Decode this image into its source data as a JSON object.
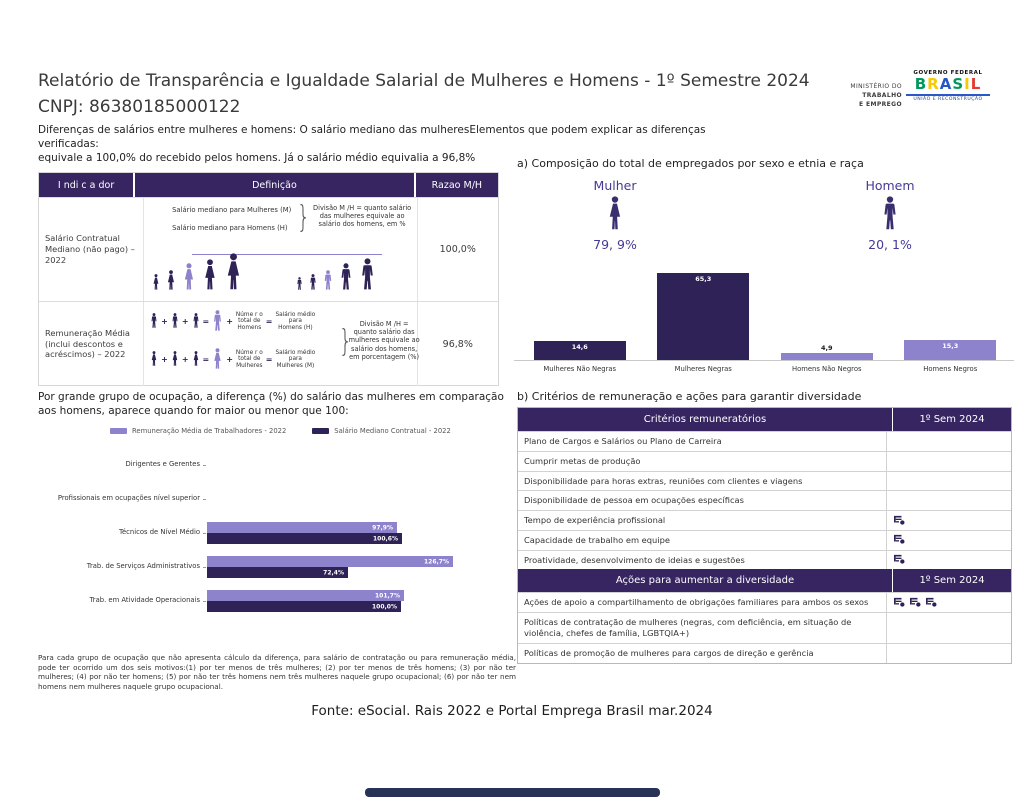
{
  "colors": {
    "dark_purple": "#2e2256",
    "header_purple": "#362560",
    "light_purple": "#8d82cc",
    "indigo_label": "#453a96",
    "axis_gray": "#c9c9c9"
  },
  "header": {
    "title": "Relatório de Transparência e Igualdade Salarial de Mulheres e Homens - 1º Semestre 2024",
    "cnpj": "CNPJ: 86380185000122",
    "subtitle_line1": "Diferenças de salários entre mulheres e homens: O salário mediano das mulheresElementos que podem explicar as diferenças verificadas:",
    "subtitle_line2": "equivale a 100,0% do recebido pelos homens. Já o salário médio equivalia a 96,8%",
    "ministry_line1": "MINISTÉRIO DO",
    "ministry_line2": "TRABALHO",
    "ministry_line3": "E EMPREGO",
    "gov_top": "GOVERNO FEDERAL",
    "gov_brand": "BRASIL",
    "gov_brand_letters": [
      {
        "ch": "B",
        "color": "#00995d"
      },
      {
        "ch": "R",
        "color": "#f7c900"
      },
      {
        "ch": "A",
        "color": "#2456c4"
      },
      {
        "ch": "S",
        "color": "#e23p"
      },
      {
        "ch": "I",
        "color": "#f7c900"
      },
      {
        "ch": "L",
        "color": "#2456c4"
      }
    ],
    "gov_bottom": "UNIÃO E RECONSTRUÇÃO"
  },
  "indicator_table": {
    "headers": [
      "I ndi c a dor",
      "Definição",
      "Razao M/H"
    ],
    "row1": {
      "indicator": "Salário Contratual Mediano (não pago) – 2022",
      "def_line1": "Salário mediano para Mulheres (M)",
      "def_line2": "Salário mediano para Homens (H)",
      "note": "Divisão M /H = quanto salário das mulheres equivale ao salário dos homens, em %",
      "ratio": "100,0%",
      "women_figures": [
        {
          "h": 16,
          "tone": "dark"
        },
        {
          "h": 20,
          "tone": "dark"
        },
        {
          "h": 27,
          "tone": "light"
        },
        {
          "h": 31,
          "tone": "dark"
        },
        {
          "h": 37,
          "tone": "dark"
        }
      ],
      "men_figures": [
        {
          "h": 13,
          "tone": "dark"
        },
        {
          "h": 16,
          "tone": "dark"
        },
        {
          "h": 20,
          "tone": "light"
        },
        {
          "h": 27,
          "tone": "dark"
        },
        {
          "h": 32,
          "tone": "dark"
        }
      ]
    },
    "row2": {
      "indicator": "Remuneração Média (inclui descontos e acréscimos) – 2022",
      "eq1_label1": "Núme r o\ntotal de\nHomens",
      "eq1_label2": "Salário médio\npara\nHomens (H)",
      "eq2_label1": "Núme r o\ntotal de\nMulheres",
      "eq2_label2": "Salário médio\npara\nMulheres (M)",
      "note": "Divisão M /H = quanto salário das mulheres equivale ao salário dos homens, em porcentagem (%)",
      "ratio": "96,8%"
    }
  },
  "section_a": {
    "title": "a) Composição do total de empregados por sexo e etnia e raça",
    "female_label": "Mulher",
    "female_pct": "79, 9%",
    "male_label": "Homem",
    "male_pct": "20, 1%"
  },
  "chart_data": [
    {
      "type": "bar",
      "title": "a) Composição do total de empregados por sexo e etnia e raça",
      "categories": [
        "Mulheres Não Negras",
        "Mulheres Negras",
        "Homens Não Negros",
        "Homens Negros"
      ],
      "values": [
        14.6,
        65.3,
        4.9,
        15.3
      ],
      "value_labels": [
        "14,6",
        "65,3",
        "4,9",
        "15,3"
      ],
      "bar_tones": [
        "dark",
        "dark",
        "light",
        "light"
      ],
      "ylim": [
        0,
        70
      ],
      "grid": false,
      "annotations": {
        "Mulher": "79, 9%",
        "Homem": "20, 1%"
      }
    },
    {
      "type": "bar-horizontal",
      "categories": [
        "Dirigentes e Gerentes",
        "Profissionais em ocupações nível superior",
        "Técnicos de Nível Médio",
        "Trab. de Serviços Administrativos",
        "Trab. em Atividade Operacionais"
      ],
      "series": [
        {
          "name": "Remuneração Média de Trabalhadores - 2022",
          "tone": "light",
          "values": [
            null,
            null,
            97.9,
            126.7,
            101.7
          ],
          "value_labels": [
            "",
            "",
            "97,9%",
            "126,7%",
            "101,7%"
          ]
        },
        {
          "name": "Salário Mediano Contratual - 2022",
          "tone": "dark",
          "values": [
            null,
            null,
            100.6,
            72.4,
            100.0
          ],
          "value_labels": [
            "",
            "",
            "100,6%",
            "72,4%",
            "100,0%"
          ]
        }
      ],
      "xlim": [
        0,
        130
      ],
      "legend_position": "top",
      "grid": false
    }
  ],
  "occupation_section": {
    "paragraph": "Por grande grupo de ocupação, a diferença (%) do salário das mulheres em comparação aos homens, aparece quando for maior ou menor que 100:",
    "legend1": "Remuneração Média de Trabalhadores - 2022",
    "legend2": "Salário Mediano Contratual - 2022"
  },
  "section_b": {
    "title": "b) Critérios de remuneração e ações para garantir diversidade",
    "sections": [
      {
        "header": "Critérios remuneratórios",
        "period": "1º Sem 2024",
        "rows": [
          {
            "label": "Plano de Cargos e Salários ou Plano de Carreira",
            "icons": 0
          },
          {
            "label": "Cumprir metas de produção",
            "icons": 0
          },
          {
            "label": "Disponibilidade para horas extras, reuniões com clientes e viagens",
            "icons": 0
          },
          {
            "label": "Disponibilidade de pessoa em ocupações específicas",
            "icons": 0
          },
          {
            "label": "Tempo de experiência profissional",
            "icons": 1
          },
          {
            "label": "Capacidade de trabalho em equipe",
            "icons": 1
          },
          {
            "label": "Proatividade, desenvolvimento de ideias e sugestões",
            "icons": 1
          }
        ]
      },
      {
        "header": "Ações para aumentar a diversidade",
        "period": "1º Sem 2024",
        "rows": [
          {
            "label": "Ações de apoio a compartilhamento de obrigações familiares para ambos os sexos",
            "icons": 3
          },
          {
            "label": "Políticas de contratação de mulheres (negras, com deficiência, em situação de violência, chefes de família, LGBTQIA+)",
            "icons": 0
          },
          {
            "label": "Políticas de promoção de mulheres para cargos de direção e gerência",
            "icons": 0
          }
        ]
      }
    ]
  },
  "icons": {
    "criteria_marker": "task-list-icon",
    "female_figure": "female-person-icon",
    "male_figure": "male-person-icon"
  },
  "footnote": "Para cada grupo de ocupação que não apresenta cálculo da diferença, para salário de contratação ou para remuneração média, pode ter ocorrido um dos seis motivos:(1) por ter menos de três mulheres; (2) por ter menos de três homens; (3) por não ter mulheres; (4) por não ter homens; (5) por não ter três homens nem três mulheres naquele grupo ocupacional; (6) por não ter nem homens nem mulheres naquele grupo ocupacional.",
  "fonte": "Fonte: eSocial. Rais 2022 e Portal Emprega Brasil mar.2024"
}
